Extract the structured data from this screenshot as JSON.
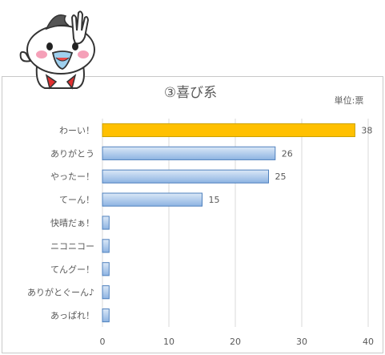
{
  "chart_data": {
    "type": "bar",
    "orientation": "horizontal",
    "title": "③喜び系",
    "unit_label": "単位:票",
    "categories": [
      "わーい！",
      "ありがとう",
      "やったー！",
      "てーん！",
      "快晴だぁ！",
      "ニコニコー",
      "てんグー！",
      "ありがとぐーん♪",
      "あっぱれ！"
    ],
    "values": [
      38,
      26,
      25,
      15,
      1,
      1,
      1,
      1,
      1
    ],
    "data_labels": [
      "38",
      "26",
      "25",
      "15",
      "",
      "",
      "",
      "",
      ""
    ],
    "highlight_index": 0,
    "xlim": [
      0,
      40
    ],
    "x_ticks": [
      0,
      10,
      20,
      30,
      40
    ],
    "grid": "vertical",
    "legend": "none"
  },
  "colors": {
    "highlight_fill": "#ffc000",
    "highlight_stroke": "#c9a000",
    "bar_fill_top": "#dbe8f7",
    "bar_fill_bottom": "#8db3e2",
    "bar_stroke": "#4f81bd",
    "grid": "#d9d9d9",
    "text": "#595959"
  },
  "mascot": {
    "icon": "bird-mascot-icon"
  }
}
